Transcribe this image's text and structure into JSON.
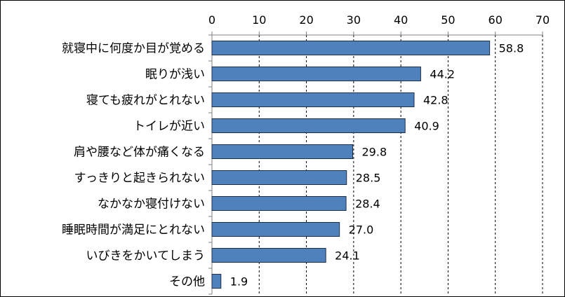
{
  "chart_data": {
    "type": "bar",
    "orientation": "horizontal",
    "categories": [
      "就寝中に何度か目が覚める",
      "眠りが浅い",
      "寝ても疲れがとれない",
      "トイレが近い",
      "肩や腰など体が痛くなる",
      "すっきりと起きられない",
      "なかなか寝付けない",
      "睡眠時間が満足にとれない",
      "いびきをかいてしまう",
      "その他"
    ],
    "values": [
      58.8,
      44.2,
      42.8,
      40.9,
      29.8,
      28.5,
      28.4,
      27.0,
      24.1,
      1.9
    ],
    "value_labels": [
      "58.8",
      "44.2",
      "42.8",
      "40.9",
      "29.8",
      "28.5",
      "28.4",
      "27.0",
      "24.1",
      "1.9"
    ],
    "xlim": [
      0,
      70
    ],
    "x_ticks": [
      0,
      10,
      20,
      30,
      40,
      50,
      60,
      70
    ],
    "x_tick_labels": [
      "0",
      "10",
      "20",
      "30",
      "40",
      "50",
      "60",
      "70"
    ],
    "axis_position": "top",
    "grid": "vertical dashed",
    "legend": "none",
    "bar_color": "#4f81bd",
    "bar_edge_color": "#1f2f4a",
    "title": "",
    "xlabel": "",
    "ylabel": ""
  }
}
